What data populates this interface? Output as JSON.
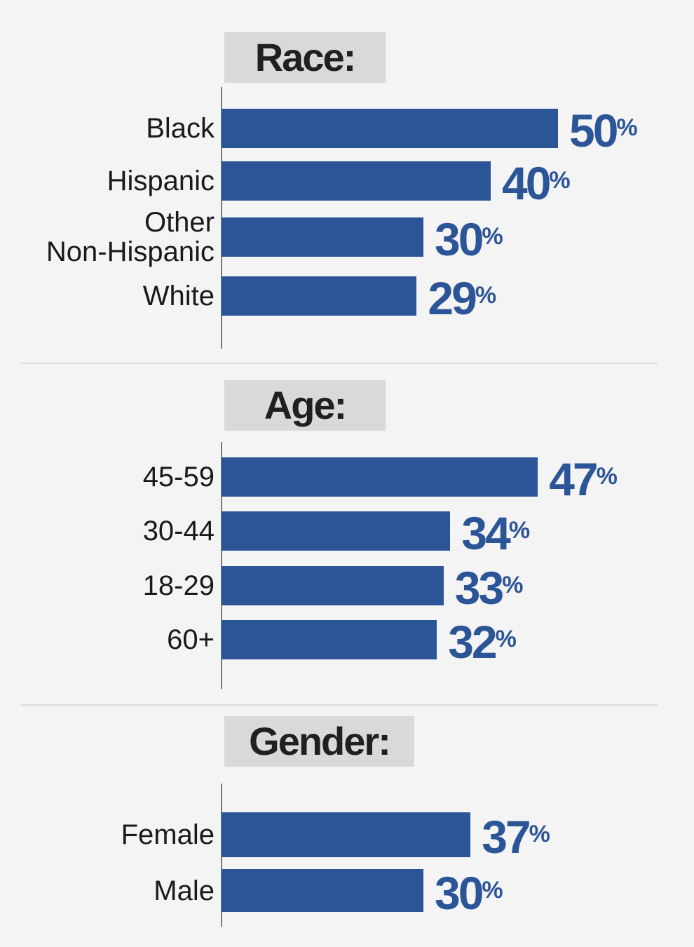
{
  "chart_data": [
    {
      "type": "bar",
      "orientation": "horizontal",
      "title": "Race:",
      "categories": [
        "Black",
        "Hispanic",
        "Other Non-Hispanic",
        "White"
      ],
      "category_lines": [
        [
          "Black"
        ],
        [
          "Hispanic"
        ],
        [
          "Other",
          "Non-Hispanic"
        ],
        [
          "White"
        ]
      ],
      "values": [
        50,
        40,
        30,
        29
      ],
      "value_suffix": "%",
      "color": "#2c5598"
    },
    {
      "type": "bar",
      "orientation": "horizontal",
      "title": "Age:",
      "categories": [
        "45-59",
        "30-44",
        "18-29",
        "60+"
      ],
      "values": [
        47,
        34,
        33,
        32
      ],
      "value_suffix": "%",
      "color": "#2c5598"
    },
    {
      "type": "bar",
      "orientation": "horizontal",
      "title": "Gender:",
      "categories": [
        "Female",
        "Male"
      ],
      "values": [
        37,
        30
      ],
      "value_suffix": "%",
      "color": "#2c5598"
    }
  ],
  "colors": {
    "bar": "#2c5598",
    "value_text": "#2c5598",
    "title_box": "#d8d9da",
    "background": "#f4f4f4"
  }
}
